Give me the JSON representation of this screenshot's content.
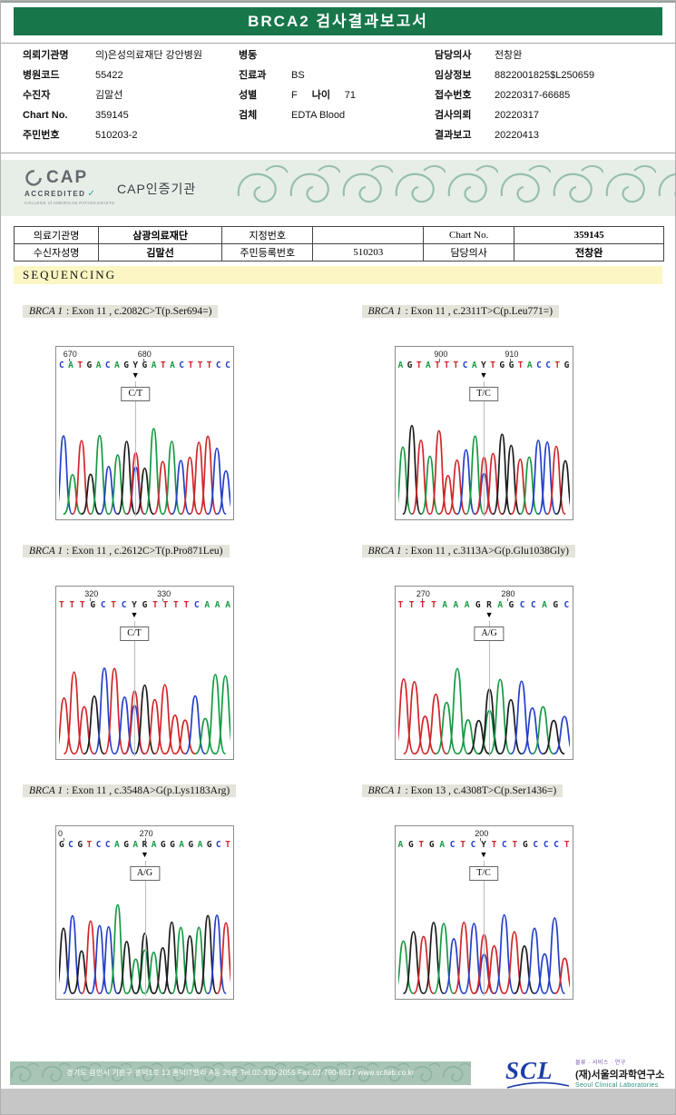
{
  "page": {
    "title": "BRCA2 검사결과보고서"
  },
  "patient": {
    "col1": [
      {
        "label": "의뢰기관명",
        "value": "의)은성의료재단 강안병원"
      },
      {
        "label": "병원코드",
        "value": "55422"
      },
      {
        "label": "수진자",
        "value": "김말선"
      },
      {
        "label": "Chart No.",
        "value": "359145"
      },
      {
        "label": "주민번호",
        "value": "510203-2"
      }
    ],
    "col2": [
      {
        "label": "병동",
        "value": ""
      },
      {
        "label": "진료과",
        "value": "BS"
      },
      {
        "label": "성별",
        "value": "F",
        "label2": "나이",
        "value2": "71"
      },
      {
        "label": "검체",
        "value": "EDTA Blood"
      }
    ],
    "col3": [
      {
        "label": "담당의사",
        "value": "전창완"
      },
      {
        "label": "임상정보",
        "value": "8822001825$L250659"
      },
      {
        "label": "접수번호",
        "value": "20220317-66685"
      },
      {
        "label": "검사의뢰",
        "value": "20220317"
      },
      {
        "label": "결과보고",
        "value": "20220413"
      }
    ]
  },
  "cap": {
    "acronym": "CAP",
    "accredited": "ACCREDITED",
    "college": "COLLEGE of AMERICAN PATHOLOGISTS",
    "label": "CAP인증기관"
  },
  "info_table": {
    "rows": [
      [
        {
          "label": "의료기관명",
          "value": "삼광의료재단",
          "bold": true
        },
        {
          "label": "지정번호",
          "value": "",
          "bold": false
        },
        {
          "label": "Chart No.",
          "value": "359145",
          "bold": true
        }
      ],
      [
        {
          "label": "수신자성명",
          "value": "김말선",
          "bold": true
        },
        {
          "label": "주민등록번호",
          "value": "510203",
          "bold": false
        },
        {
          "label": "담당의사",
          "value": "전창완",
          "bold": true
        }
      ]
    ]
  },
  "section": {
    "title": "SEQUENCING"
  },
  "base_colors": {
    "A": "#169a43",
    "C": "#2440c8",
    "G": "#1c1c1c",
    "T": "#d0262a",
    "N": "#222222"
  },
  "iupac": {
    "Y": [
      "C",
      "T"
    ],
    "R": [
      "A",
      "G"
    ]
  },
  "panels": [
    {
      "gene": "BRCA 1",
      "desc": " : Exon 11 , c.2082C>T(p.Ser694=)",
      "sequence": "CATGACAGYGATACTTTCC",
      "variant": "C/T",
      "arrow_index": 8,
      "positions": [
        {
          "text": "670",
          "x": 4
        },
        {
          "text": "680",
          "x": 46
        }
      ]
    },
    {
      "gene": "BRCA 1",
      "desc": " : Exon 11 , c.2311T>C(p.Leu771=)",
      "sequence": "AGTATTTCAYTGGTACCTG",
      "variant": "T/C",
      "arrow_index": 9,
      "positions": [
        {
          "text": "900",
          "x": 22
        },
        {
          "text": "910",
          "x": 62
        }
      ]
    },
    {
      "gene": "BRCA 1",
      "desc": " : Exon 11 , c.2612C>T(p.Pro871Leu)",
      "sequence": "TTTGCTCYGTTTTCAAA",
      "variant": "C/T",
      "arrow_index": 7,
      "positions": [
        {
          "text": "320",
          "x": 16
        },
        {
          "text": "330",
          "x": 57
        }
      ]
    },
    {
      "gene": "BRCA 1",
      "desc": " : Exon 11 , c.3113A>G(p.Glu1038Gly)",
      "sequence": "TTTTAAAGRAGCCAGC",
      "variant": "A/G",
      "arrow_index": 8,
      "positions": [
        {
          "text": "270",
          "x": 12
        },
        {
          "text": "280",
          "x": 60
        }
      ]
    },
    {
      "gene": "BRCA 1",
      "desc": " : Exon 11 , c.3548A>G(p.Lys1183Arg)",
      "sequence": "GCGTCCAGARAGGAGAGCT",
      "variant": "A/G",
      "arrow_index": 9,
      "positions": [
        {
          "text": "0",
          "x": 1
        },
        {
          "text": "270",
          "x": 47
        }
      ]
    },
    {
      "gene": "BRCA 1",
      "desc": " : Exon 13 , c.4308T>C(p.Ser1436=)",
      "sequence": "AGTGACTCYTCTGCCCT",
      "variant": "T/C",
      "arrow_index": 8,
      "positions": [
        {
          "text": "200",
          "x": 45
        }
      ]
    }
  ],
  "footer": {
    "address": "경기도 용인시 기흥구 흥덕1로 13 흥덕IT밸리 A동 26층  Tel.02-330-2055  Fax.02-790-6517  www.scllab.co.kr",
    "scl": "SCL",
    "tagline": "물류 · 서비스 · 연구",
    "org": "(재)서울의과학연구소",
    "org_en": "Seoul Clinical Laboratories"
  }
}
